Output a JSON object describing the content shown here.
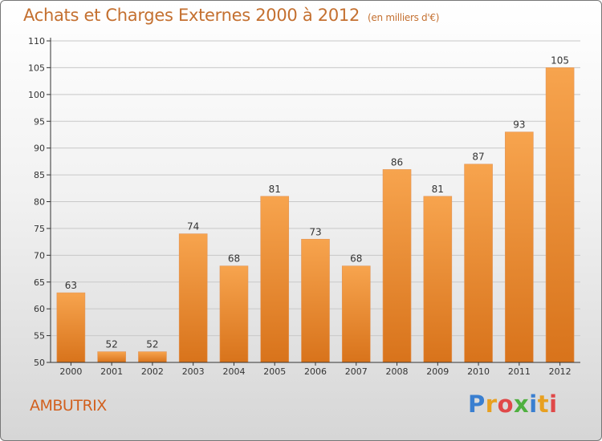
{
  "title": "Achats et Charges Externes 2000 à 2012",
  "subtitle": "(en milliers d'€)",
  "place": "AMBUTRIX",
  "logo": {
    "text": "Proxiti",
    "letters": [
      {
        "char": "P",
        "color": "#3a7fd0"
      },
      {
        "char": "r",
        "color": "#e8a020"
      },
      {
        "char": "o",
        "color": "#e04848"
      },
      {
        "char": "x",
        "color": "#50b040"
      },
      {
        "char": "i",
        "color": "#3a7fd0"
      },
      {
        "char": "t",
        "color": "#e8a020"
      },
      {
        "char": "i",
        "color": "#e04848"
      }
    ]
  },
  "colors": {
    "bar_top": "#f7a44e",
    "bar_bottom": "#d8731b",
    "accent_text": "#c47030",
    "axis": "#333333"
  },
  "chart_data": {
    "type": "bar",
    "categories": [
      "2000",
      "2001",
      "2002",
      "2003",
      "2004",
      "2005",
      "2006",
      "2007",
      "2008",
      "2009",
      "2010",
      "2011",
      "2012"
    ],
    "values": [
      63,
      52,
      52,
      74,
      68,
      81,
      73,
      68,
      86,
      81,
      87,
      93,
      105
    ],
    "ylim": [
      50,
      110
    ],
    "yticks": [
      50,
      55,
      60,
      65,
      70,
      75,
      80,
      85,
      90,
      95,
      100,
      105,
      110
    ],
    "grid": true
  }
}
